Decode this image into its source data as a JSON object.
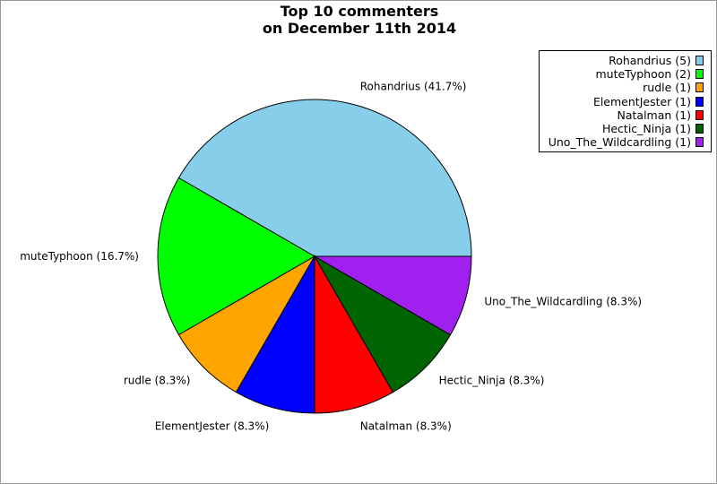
{
  "chart_data": {
    "type": "pie",
    "title": [
      "Top 10 commenters",
      "on December 11th 2014"
    ],
    "start_angle_deg": 0,
    "direction": "counterclockwise",
    "legend_position": "top-right",
    "slices": [
      {
        "name": "Rohandrius",
        "count": 5,
        "label": "Rohandrius (41.7%)",
        "legend": "Rohandrius (5)",
        "color": "#87ceeb"
      },
      {
        "name": "muteTyphoon",
        "count": 2,
        "label": "muteTyphoon (16.7%)",
        "legend": "muteTyphoon (2)",
        "color": "#00ff00"
      },
      {
        "name": "rudle",
        "count": 1,
        "label": "rudle (8.3%)",
        "legend": "rudle (1)",
        "color": "#ffa500"
      },
      {
        "name": "ElementJester",
        "count": 1,
        "label": "ElementJester (8.3%)",
        "legend": "ElementJester (1)",
        "color": "#0000ff"
      },
      {
        "name": "Natalman",
        "count": 1,
        "label": "Natalman (8.3%)",
        "legend": "Natalman (1)",
        "color": "#ff0000"
      },
      {
        "name": "Hectic_Ninja",
        "count": 1,
        "label": "Hectic_Ninja (8.3%)",
        "legend": "Hectic_Ninja (1)",
        "color": "#006400"
      },
      {
        "name": "Uno_The_Wildcardling",
        "count": 1,
        "label": "Uno_The_Wildcardling (8.3%)",
        "legend": "Uno_The_Wildcardling (1)",
        "color": "#a020f0"
      }
    ]
  }
}
